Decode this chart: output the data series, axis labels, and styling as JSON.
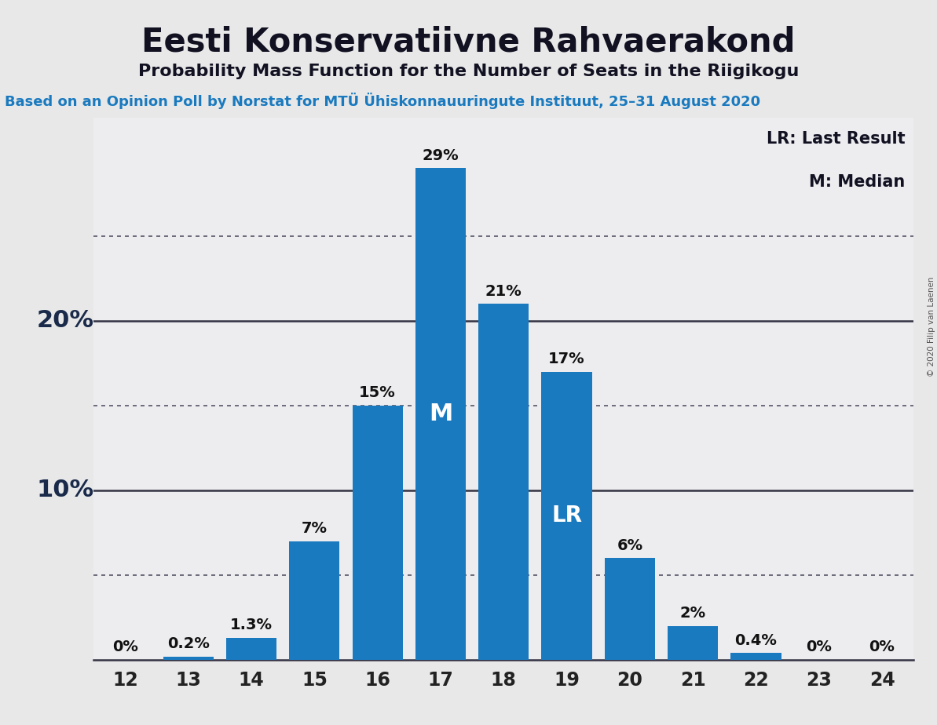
{
  "title": "Eesti Konservatiivne Rahvaerakond",
  "subtitle": "Probability Mass Function for the Number of Seats in the Riigikogu",
  "source_line": "Based on an Opinion Poll by Norstat for MTÜ Ühiskonnauuringute Instituut, 25–31 August 2020",
  "copyright": "© 2020 Filip van Laenen",
  "categories": [
    12,
    13,
    14,
    15,
    16,
    17,
    18,
    19,
    20,
    21,
    22,
    23,
    24
  ],
  "values": [
    0.0,
    0.2,
    1.3,
    7.0,
    15.0,
    29.0,
    21.0,
    17.0,
    6.0,
    2.0,
    0.4,
    0.0,
    0.0
  ],
  "labels": [
    "0%",
    "0.2%",
    "1.3%",
    "7%",
    "15%",
    "29%",
    "21%",
    "17%",
    "6%",
    "2%",
    "0.4%",
    "0%",
    "0%"
  ],
  "bar_color": "#1a7abf",
  "background_color": "#e8e8e8",
  "plot_bg_color": "#ededf0",
  "median_bar": 17,
  "lr_bar": 19,
  "legend_lr": "LR: Last Result",
  "legend_m": "M: Median",
  "ylim": [
    0,
    32
  ],
  "major_yticks": [
    10,
    20
  ],
  "dotted_yticks": [
    5,
    15,
    25
  ],
  "title_fontsize": 30,
  "subtitle_fontsize": 16,
  "source_fontsize": 13,
  "label_fontsize": 14,
  "tick_fontsize": 17,
  "legend_fontsize": 15,
  "ylabel_fontsize": 22,
  "bar_label_m_fontsize": 22,
  "bar_label_lr_fontsize": 20
}
